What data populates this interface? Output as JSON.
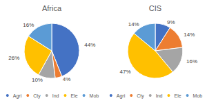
{
  "chart_data": [
    {
      "type": "pie",
      "title": "Africa",
      "categories": [
        "Agri",
        "Cty",
        "Ind",
        "Ele",
        "Mob"
      ],
      "values": [
        44,
        4,
        10,
        26,
        16
      ],
      "value_labels": [
        "44%",
        "4%",
        "10%",
        "26%",
        "16%"
      ],
      "colors": [
        "#4472c4",
        "#ed7d31",
        "#a5a5a5",
        "#ffc000",
        "#5b9bd5"
      ],
      "data_labels": true,
      "legend": "bottom"
    },
    {
      "type": "pie",
      "title": "CIS",
      "categories": [
        "Agri",
        "Cty",
        "Ind",
        "Ele",
        "Mob"
      ],
      "values": [
        9,
        14,
        16,
        47,
        14
      ],
      "value_labels": [
        "9%",
        "14%",
        "16%",
        "47%",
        "14%"
      ],
      "colors": [
        "#4472c4",
        "#ed7d31",
        "#a5a5a5",
        "#ffc000",
        "#5b9bd5"
      ],
      "data_labels": true,
      "legend": "bottom"
    }
  ]
}
